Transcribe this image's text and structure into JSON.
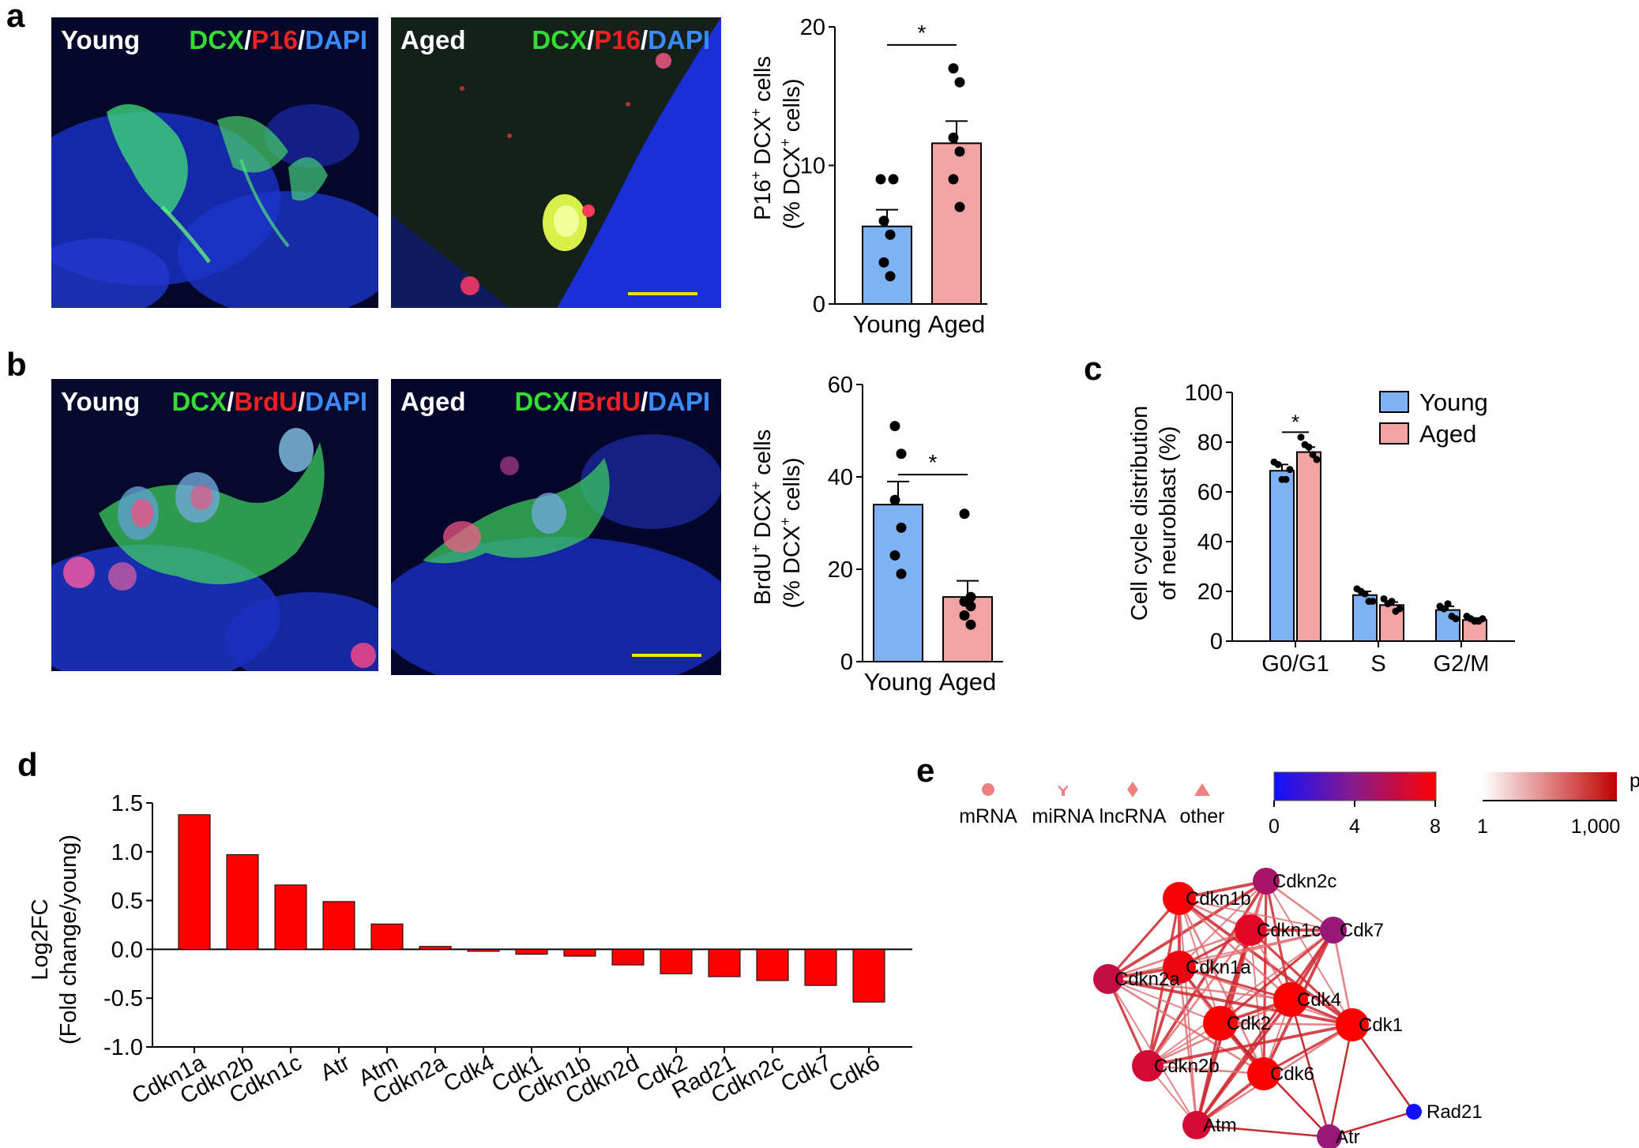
{
  "panels": {
    "a": "a",
    "b": "b",
    "c": "c",
    "d": "d",
    "e": "e"
  },
  "colors": {
    "young": "#7fb2f5",
    "aged": "#f4a3a3",
    "dcx": "#33dd33",
    "marker": "#ee2222",
    "dapi": "#3b8bff",
    "bar_d": "#ff0000"
  },
  "micrographs": {
    "a_young": {
      "label": "Young",
      "stain": [
        "DCX",
        "/",
        "P16",
        "/",
        "DAPI"
      ]
    },
    "a_aged": {
      "label": "Aged",
      "stain": [
        "DCX",
        "/",
        "P16",
        "/",
        "DAPI"
      ]
    },
    "b_young": {
      "label": "Young",
      "stain": [
        "DCX",
        "/",
        "BrdU",
        "/",
        "DAPI"
      ]
    },
    "b_aged": {
      "label": "Aged",
      "stain": [
        "DCX",
        "/",
        "BrdU",
        "/",
        "DAPI"
      ]
    }
  },
  "chart_data": [
    {
      "id": "a",
      "type": "bar",
      "categories": [
        "Young",
        "Aged"
      ],
      "values": [
        5.6,
        11.6
      ],
      "sem": [
        1.2,
        1.6
      ],
      "points": [
        [
          9,
          9,
          6,
          5,
          3,
          2
        ],
        [
          17,
          16,
          12,
          11,
          9,
          7
        ]
      ],
      "ylabel_line1": [
        "P16",
        "+",
        " DCX",
        "+",
        " cells"
      ],
      "ylabel_line2": [
        "(% DCX",
        "+",
        " cells)"
      ],
      "ylim": [
        0,
        20
      ],
      "yticks": [
        "0",
        "10",
        "20"
      ],
      "yticks_values": [
        0,
        10,
        20
      ],
      "significance": "*"
    },
    {
      "id": "b",
      "type": "bar",
      "categories": [
        "Young",
        "Aged"
      ],
      "values": [
        34,
        14
      ],
      "sem": [
        5,
        3.5
      ],
      "points": [
        [
          51,
          45,
          35,
          29,
          23,
          19
        ],
        [
          32,
          14,
          13,
          12,
          10,
          8
        ]
      ],
      "ylabel_line1": [
        "BrdU",
        "+",
        " DCX",
        "+",
        " cells"
      ],
      "ylabel_line2": [
        "(% DCX",
        "+",
        " cells)"
      ],
      "ylim": [
        0,
        60
      ],
      "yticks": [
        "0",
        "20",
        "40",
        "60"
      ],
      "yticks_values": [
        0,
        20,
        40,
        60
      ],
      "significance": "*"
    },
    {
      "id": "c",
      "type": "bar",
      "categories": [
        "G0/G1",
        "S",
        "G2/M"
      ],
      "series": [
        {
          "name": "Young",
          "values": [
            68.5,
            18.5,
            12.5
          ],
          "sem": [
            2.5,
            1.5,
            1.5
          ],
          "points": [
            [
              72,
              71,
              65,
              65,
              69
            ],
            [
              21,
              20,
              19,
              16,
              16
            ],
            [
              14,
              13,
              15,
              10,
              9
            ]
          ]
        },
        {
          "name": "Aged",
          "values": [
            76,
            14.5,
            8.5
          ],
          "sem": [
            2,
            1.2,
            0.8
          ],
          "points": [
            [
              82,
              79,
              78,
              75,
              73
            ],
            [
              17,
              15,
              16,
              12,
              13
            ],
            [
              10,
              9,
              8,
              8,
              9
            ]
          ]
        }
      ],
      "ylabel_line1": "Cell cycle distribution",
      "ylabel_line2": "of neuroblast (%)",
      "ylim": [
        0,
        100
      ],
      "yticks": [
        "0",
        "20",
        "40",
        "60",
        "80",
        "100"
      ],
      "yticks_values": [
        0,
        20,
        40,
        60,
        80,
        100
      ],
      "significance": "*",
      "legend": "top-right"
    },
    {
      "id": "d",
      "type": "bar",
      "categories": [
        "Cdkn1a",
        "Cdkn2b",
        "Cdkn1c",
        "Atr",
        "Atm",
        "Cdkn2a",
        "Cdk4",
        "Cdk1",
        "Cdkn1b",
        "Cdkn2d",
        "Cdk2",
        "Rad21",
        "Cdkn2c",
        "Cdk7",
        "Cdk6"
      ],
      "values": [
        1.38,
        0.97,
        0.66,
        0.49,
        0.26,
        0.03,
        -0.02,
        -0.05,
        -0.07,
        -0.16,
        -0.25,
        -0.28,
        -0.32,
        -0.37,
        -0.54
      ],
      "ylabel_line1": "Log2FC",
      "ylabel_line2": "(Fold change/young)",
      "ylim": [
        -1.0,
        1.5
      ],
      "yticks": [
        "-1.0",
        "-0.5",
        "0.0",
        "0.5",
        "1.0",
        "1.5"
      ],
      "yticks_values": [
        -1.0,
        -0.5,
        0.0,
        0.5,
        1.0,
        1.5
      ]
    }
  ],
  "network": {
    "shape_legend": [
      "mRNA",
      "miRNA",
      "lncRNA",
      "other"
    ],
    "color_scale_ticks": [
      "0",
      "4",
      "8"
    ],
    "ppi_label": "ppi",
    "ppi_ticks": [
      "1",
      "1,000"
    ],
    "nodes": [
      {
        "name": "Cdkn2c",
        "value": 5
      },
      {
        "name": "Cdkn1b",
        "value": 7.8
      },
      {
        "name": "Cdkn1c",
        "value": 7
      },
      {
        "name": "Cdk7",
        "value": 4.5
      },
      {
        "name": "Cdkn1a",
        "value": 7.5
      },
      {
        "name": "Cdkn2a",
        "value": 6
      },
      {
        "name": "Cdk4",
        "value": 8
      },
      {
        "name": "Cdk2",
        "value": 8
      },
      {
        "name": "Cdk1",
        "value": 8
      },
      {
        "name": "Cdkn2b",
        "value": 6.5
      },
      {
        "name": "Cdk6",
        "value": 8
      },
      {
        "name": "Atm",
        "value": 6.5
      },
      {
        "name": "Atr",
        "value": 4.5
      },
      {
        "name": "Rad21",
        "value": 0
      }
    ]
  }
}
